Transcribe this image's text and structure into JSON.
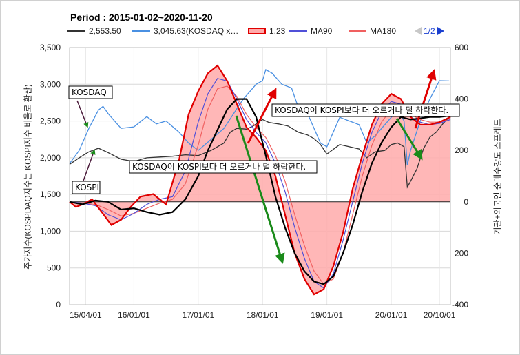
{
  "title": "Period : 2015-01-02~2020-11-20",
  "legend": {
    "items": [
      {
        "label": "2,553.50",
        "color": "#333333",
        "kind": "line"
      },
      {
        "label": "3,045.63(KOSDAQ x…",
        "color": "#4a90e2",
        "kind": "line"
      },
      {
        "label": "1.23",
        "color": "#e00000",
        "kind": "area"
      },
      {
        "label": "MA90",
        "color": "#5050d8",
        "kind": "line"
      },
      {
        "label": "MA180",
        "color": "#f06060",
        "kind": "line"
      }
    ],
    "page": "1/2"
  },
  "annotations": {
    "kosdaq": "KOSDAQ",
    "kospi": "KOSPI",
    "callout_1": "KOSDAQ이 KOSPI보다 더 오르거나 덜 하락한다.",
    "callout_2": "KOSDAQ이 KOSPI보다 더 오르거나 덜 하락한다."
  },
  "colors": {
    "kospi": "#333333",
    "kosdaq": "#4a90e2",
    "spread_line": "#e00000",
    "spread_fill": "#ffaaaa",
    "ma90": "#5050d8",
    "ma180": "#f06060",
    "ma_black": "#000000",
    "arrow_red": "#e00000",
    "arrow_green": "#1a8a1a"
  },
  "chart_data": {
    "type": "line",
    "title": "Period : 2015-01-02~2020-11-20",
    "ylabel": "주가지수(KOSPDAQ지수는 KOSPI지수 비율로 환산)",
    "y2label": "기관+외국인 순매수강도 스프레드",
    "xlim": [
      2015.0,
      2020.92
    ],
    "ylim": [
      0,
      3500
    ],
    "y2lim": [
      -400,
      600
    ],
    "yticks": [
      0,
      500,
      1000,
      1500,
      2000,
      2500,
      3000,
      3500
    ],
    "yticklabels": [
      "0",
      "500",
      "1,000",
      "1,500",
      "2,000",
      "2,500",
      "3,000",
      "3,500"
    ],
    "y2ticks": [
      -400,
      -200,
      0,
      200,
      400,
      600
    ],
    "y2ticklabels": [
      "-400",
      "-200",
      "0",
      "200",
      "400",
      "600"
    ],
    "xticks": [
      2015.25,
      2016.0,
      2017.0,
      2018.0,
      2019.0,
      2020.0,
      2020.75
    ],
    "xticklabels": [
      "15/04/01",
      "16/01/01",
      "17/01/01",
      "18/01/01",
      "19/01/01",
      "20/01/01",
      "20/10/01"
    ],
    "grid": true,
    "series": [
      {
        "name": "2,553.50",
        "axis": "left",
        "x": [
          2015.0,
          2015.15,
          2015.3,
          2015.45,
          2015.6,
          2015.8,
          2016.0,
          2016.2,
          2016.4,
          2016.6,
          2016.8,
          2017.0,
          2017.2,
          2017.4,
          2017.5,
          2017.6,
          2017.75,
          2017.85,
          2018.0,
          2018.1,
          2018.25,
          2018.4,
          2018.55,
          2018.7,
          2018.8,
          2018.9,
          2019.0,
          2019.2,
          2019.35,
          2019.5,
          2019.62,
          2019.75,
          2019.9,
          2020.0,
          2020.1,
          2020.2,
          2020.25,
          2020.3,
          2020.4,
          2020.5,
          2020.6,
          2020.7,
          2020.8,
          2020.9
        ],
        "values": [
          1910,
          2000,
          2080,
          2130,
          2070,
          1980,
          1950,
          2000,
          2010,
          2020,
          2040,
          2030,
          2100,
          2200,
          2350,
          2400,
          2390,
          2430,
          2520,
          2480,
          2460,
          2430,
          2350,
          2310,
          2260,
          2180,
          2050,
          2180,
          2150,
          2120,
          2000,
          2080,
          2100,
          2180,
          2200,
          2150,
          1600,
          1680,
          1850,
          2120,
          2280,
          2350,
          2460,
          2553.5
        ]
      },
      {
        "name": "3,045.63(KOSDAQ x…",
        "axis": "left",
        "x": [
          2015.0,
          2015.15,
          2015.3,
          2015.45,
          2015.52,
          2015.6,
          2015.8,
          2016.0,
          2016.2,
          2016.35,
          2016.5,
          2016.7,
          2016.85,
          2017.0,
          2017.2,
          2017.4,
          2017.55,
          2017.7,
          2017.8,
          2017.9,
          2018.0,
          2018.05,
          2018.15,
          2018.3,
          2018.45,
          2018.55,
          2018.7,
          2018.8,
          2018.9,
          2019.0,
          2019.2,
          2019.35,
          2019.5,
          2019.62,
          2019.75,
          2019.9,
          2020.0,
          2020.1,
          2020.2,
          2020.25,
          2020.3,
          2020.45,
          2020.6,
          2020.75,
          2020.9
        ],
        "values": [
          1920,
          2100,
          2400,
          2650,
          2700,
          2600,
          2400,
          2420,
          2560,
          2460,
          2500,
          2350,
          2200,
          2100,
          2250,
          2400,
          2600,
          2800,
          2900,
          3000,
          3050,
          3200,
          3150,
          3000,
          2950,
          2700,
          2600,
          2400,
          2200,
          2150,
          2550,
          2500,
          2450,
          2200,
          2300,
          2450,
          2550,
          2650,
          2500,
          1900,
          2100,
          2500,
          2800,
          3050,
          3045.63
        ]
      },
      {
        "name": "1.23",
        "axis": "right",
        "fill": true,
        "x": [
          2015.0,
          2015.1,
          2015.2,
          2015.35,
          2015.5,
          2015.65,
          2015.8,
          2015.95,
          2016.1,
          2016.3,
          2016.5,
          2016.7,
          2016.85,
          2017.0,
          2017.15,
          2017.3,
          2017.45,
          2017.6,
          2017.75,
          2017.9,
          2018.05,
          2018.2,
          2018.35,
          2018.5,
          2018.65,
          2018.8,
          2018.95,
          2019.1,
          2019.25,
          2019.4,
          2019.55,
          2019.7,
          2019.85,
          2020.0,
          2020.15,
          2020.3,
          2020.45,
          2020.6,
          2020.75,
          2020.92
        ],
        "values": [
          0,
          -20,
          -10,
          10,
          -40,
          -90,
          -70,
          -20,
          20,
          30,
          -10,
          160,
          340,
          430,
          500,
          530,
          470,
          380,
          290,
          250,
          200,
          100,
          -50,
          -200,
          -300,
          -360,
          -340,
          -250,
          -120,
          50,
          180,
          300,
          380,
          420,
          400,
          330,
          300,
          300,
          310,
          330
        ]
      },
      {
        "name": "MA90",
        "axis": "right",
        "x": [
          2015.0,
          2015.2,
          2015.4,
          2015.6,
          2015.8,
          2016.0,
          2016.2,
          2016.4,
          2016.6,
          2016.8,
          2017.0,
          2017.15,
          2017.3,
          2017.45,
          2017.6,
          2017.75,
          2017.9,
          2018.05,
          2018.2,
          2018.35,
          2018.5,
          2018.65,
          2018.8,
          2018.95,
          2019.1,
          2019.25,
          2019.4,
          2019.55,
          2019.7,
          2019.85,
          2020.0,
          2020.15,
          2020.3,
          2020.45,
          2020.6,
          2020.75,
          2020.92
        ],
        "values": [
          0,
          -5,
          -15,
          -50,
          -70,
          -45,
          -10,
          10,
          20,
          120,
          310,
          420,
          480,
          470,
          400,
          320,
          270,
          230,
          150,
          40,
          -100,
          -220,
          -310,
          -335,
          -280,
          -150,
          0,
          150,
          270,
          350,
          390,
          380,
          330,
          310,
          300,
          305,
          320
        ]
      },
      {
        "name": "MA180",
        "axis": "right",
        "x": [
          2015.0,
          2015.2,
          2015.4,
          2015.6,
          2015.8,
          2016.0,
          2016.2,
          2016.4,
          2016.6,
          2016.8,
          2017.0,
          2017.15,
          2017.3,
          2017.45,
          2017.6,
          2017.75,
          2017.9,
          2018.05,
          2018.2,
          2018.35,
          2018.5,
          2018.65,
          2018.8,
          2018.95,
          2019.1,
          2019.25,
          2019.4,
          2019.55,
          2019.7,
          2019.85,
          2020.0,
          2020.15,
          2020.3,
          2020.45,
          2020.6,
          2020.75,
          2020.92
        ],
        "values": [
          0,
          -5,
          -10,
          -30,
          -55,
          -45,
          -25,
          -5,
          10,
          70,
          220,
          360,
          440,
          450,
          410,
          340,
          290,
          250,
          180,
          80,
          -50,
          -170,
          -270,
          -320,
          -300,
          -200,
          -50,
          100,
          220,
          310,
          360,
          370,
          340,
          320,
          310,
          310,
          320
        ]
      },
      {
        "name": "",
        "axis": "right",
        "x": [
          2015.0,
          2015.2,
          2015.4,
          2015.6,
          2015.8,
          2016.0,
          2016.2,
          2016.4,
          2016.6,
          2016.8,
          2017.0,
          2017.15,
          2017.3,
          2017.45,
          2017.6,
          2017.75,
          2017.9,
          2018.05,
          2018.2,
          2018.35,
          2018.5,
          2018.65,
          2018.8,
          2018.95,
          2019.1,
          2019.25,
          2019.4,
          2019.55,
          2019.7,
          2019.85,
          2020.0,
          2020.15,
          2020.3,
          2020.45,
          2020.6,
          2020.75,
          2020.92
        ],
        "values": [
          0,
          -10,
          5,
          0,
          -30,
          -25,
          -40,
          -50,
          -40,
          10,
          100,
          200,
          280,
          360,
          400,
          400,
          330,
          180,
          20,
          -100,
          -200,
          -270,
          -310,
          -320,
          -290,
          -200,
          -90,
          40,
          150,
          230,
          290,
          330,
          320,
          325,
          330,
          330,
          335
        ]
      }
    ]
  }
}
